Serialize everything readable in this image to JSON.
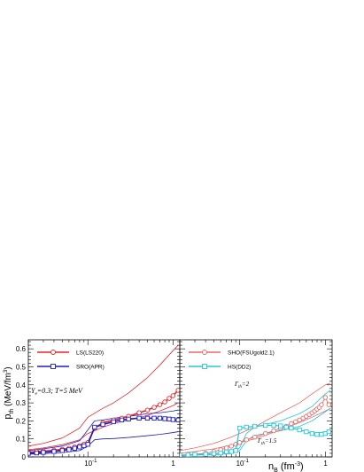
{
  "chart_data": [
    {
      "type": "line",
      "panel": "left",
      "xscale": "log",
      "xlim": [
        0.02,
        1.2
      ],
      "ylim": [
        0,
        0.65
      ],
      "x_ticks": [
        {
          "value": 0.1,
          "label": "10",
          "sup": "-1"
        },
        {
          "value": 1.0,
          "label": "1"
        }
      ],
      "y_ticks": [
        {
          "value": 0,
          "label": "0"
        },
        {
          "value": 0.1,
          "label": "0.1"
        },
        {
          "value": 0.2,
          "label": "0.2"
        },
        {
          "value": 0.3,
          "label": "0.3"
        },
        {
          "value": 0.4,
          "label": "0.4"
        },
        {
          "value": 0.5,
          "label": "0.5"
        },
        {
          "value": 0.6,
          "label": "0.6"
        }
      ],
      "ylabel": {
        "main": "p",
        "sub": "th",
        "unit": " (MeV/fm",
        "unit_sup": "3",
        "unit_end": ")"
      },
      "annotation": "Y_e=0.3; T=5 MeV",
      "legend": [
        {
          "label": "LS(LS220)",
          "color": "#e8272a",
          "marker": "circle"
        },
        {
          "label": "SRO(APR)",
          "color": "#1d1dbf",
          "marker": "square"
        }
      ],
      "series": [
        {
          "name": "LS(LS220)",
          "color": "#e8272a",
          "marker": "circle",
          "width": 1.6,
          "x": [
            0.02,
            0.025,
            0.03,
            0.04,
            0.05,
            0.06,
            0.07,
            0.08,
            0.09,
            0.1,
            0.12,
            0.15,
            0.2,
            0.25,
            0.3,
            0.4,
            0.5,
            0.6,
            0.7,
            0.8,
            0.9,
            1.0,
            1.15
          ],
          "y": [
            0.025,
            0.03,
            0.032,
            0.037,
            0.042,
            0.048,
            0.055,
            0.062,
            0.07,
            0.08,
            0.16,
            0.19,
            0.205,
            0.215,
            0.225,
            0.245,
            0.26,
            0.275,
            0.29,
            0.305,
            0.325,
            0.34,
            0.37
          ]
        },
        {
          "name": "SRO(APR)",
          "color": "#1d1dbf",
          "marker": "square",
          "width": 1.6,
          "x": [
            0.02,
            0.025,
            0.03,
            0.04,
            0.05,
            0.06,
            0.07,
            0.08,
            0.09,
            0.1,
            0.12,
            0.15,
            0.2,
            0.25,
            0.3,
            0.4,
            0.5,
            0.6,
            0.7,
            0.8,
            0.9,
            1.0,
            1.15
          ],
          "y": [
            0.02,
            0.022,
            0.025,
            0.03,
            0.035,
            0.04,
            0.048,
            0.055,
            0.062,
            0.07,
            0.165,
            0.18,
            0.195,
            0.205,
            0.21,
            0.215,
            0.215,
            0.215,
            0.215,
            0.212,
            0.21,
            0.207,
            0.205
          ]
        },
        {
          "name": "",
          "color": "#e8272a",
          "marker": "none",
          "width": 0.8,
          "x": [
            0.02,
            0.03,
            0.05,
            0.08,
            0.1,
            0.15,
            0.2,
            0.3,
            0.5,
            0.7,
            1.0,
            1.15
          ],
          "y": [
            0.06,
            0.075,
            0.105,
            0.16,
            0.22,
            0.27,
            0.3,
            0.355,
            0.44,
            0.51,
            0.59,
            0.62
          ]
        },
        {
          "name": "",
          "color": "#e8272a",
          "marker": "none",
          "width": 0.8,
          "x": [
            0.02,
            0.03,
            0.05,
            0.08,
            0.1,
            0.15,
            0.2,
            0.3,
            0.5,
            0.7,
            1.0,
            1.15
          ],
          "y": [
            0.04,
            0.05,
            0.068,
            0.095,
            0.13,
            0.165,
            0.185,
            0.205,
            0.23,
            0.255,
            0.285,
            0.3
          ]
        },
        {
          "name": "",
          "color": "#1d1dbf",
          "marker": "none",
          "width": 0.8,
          "x": [
            0.02,
            0.03,
            0.05,
            0.08,
            0.1,
            0.12,
            0.15,
            0.2,
            0.3,
            0.5,
            0.7,
            1.0,
            1.15
          ],
          "y": [
            0.035,
            0.045,
            0.06,
            0.09,
            0.15,
            0.2,
            0.205,
            0.215,
            0.225,
            0.24,
            0.245,
            0.255,
            0.26
          ]
        },
        {
          "name": "",
          "color": "#1d1dbf",
          "marker": "none",
          "width": 0.8,
          "x": [
            0.02,
            0.03,
            0.05,
            0.08,
            0.1,
            0.12,
            0.15,
            0.2,
            0.3,
            0.5,
            0.7,
            1.0,
            1.15
          ],
          "y": [
            0.015,
            0.018,
            0.024,
            0.035,
            0.06,
            0.095,
            0.1,
            0.102,
            0.108,
            0.118,
            0.125,
            0.135,
            0.14
          ]
        }
      ]
    },
    {
      "type": "line",
      "panel": "right",
      "xscale": "log",
      "xlim": [
        0.02,
        1.2
      ],
      "ylim": [
        0,
        0.65
      ],
      "x_ticks": [
        {
          "value": 0.1,
          "label": "10",
          "sup": "-1"
        },
        {
          "value": 1.0,
          "label": "1"
        }
      ],
      "xlabel": {
        "main": "n",
        "sub": "B",
        "unit": " (fm",
        "unit_sup": "-3",
        "unit_end": ")"
      },
      "annotations": [
        {
          "text": "Γ",
          "sub": "th",
          "rest": "=2"
        },
        {
          "text": "Γ",
          "sub": "th",
          "rest": "=1.5"
        }
      ],
      "legend": [
        {
          "label": "SHO(FSUgold2.1)",
          "color": "#e86a6a",
          "marker": "circle"
        },
        {
          "label": "HS(DD2)",
          "color": "#22c8dc",
          "marker": "square"
        }
      ],
      "series": [
        {
          "name": "SHO(FSUgold2.1)",
          "color": "#e86a6a",
          "marker": "circle",
          "width": 0.9,
          "x": [
            0.02,
            0.025,
            0.03,
            0.04,
            0.05,
            0.06,
            0.07,
            0.08,
            0.09,
            0.1,
            0.12,
            0.15,
            0.2,
            0.25,
            0.3,
            0.35,
            0.4,
            0.45,
            0.5,
            0.55,
            0.6,
            0.65,
            0.7,
            0.75,
            0.8,
            0.85,
            0.9,
            1.0,
            1.1
          ],
          "y": [
            0.005,
            0.01,
            0.015,
            0.02,
            0.03,
            0.04,
            0.05,
            0.06,
            0.07,
            0.08,
            0.095,
            0.11,
            0.13,
            0.145,
            0.16,
            0.17,
            0.185,
            0.195,
            0.205,
            0.215,
            0.225,
            0.235,
            0.245,
            0.255,
            0.265,
            0.275,
            0.29,
            0.33,
            0.29
          ]
        },
        {
          "name": "HS(DD2)",
          "color": "#22c8dc",
          "marker": "square",
          "width": 1.2,
          "x": [
            0.02,
            0.025,
            0.03,
            0.04,
            0.05,
            0.06,
            0.07,
            0.08,
            0.09,
            0.1,
            0.12,
            0.15,
            0.2,
            0.25,
            0.3,
            0.35,
            0.4,
            0.5,
            0.6,
            0.7,
            0.8,
            0.9,
            1.0,
            1.1
          ],
          "y": [
            0.01,
            0.012,
            0.014,
            0.015,
            0.018,
            0.022,
            0.028,
            0.03,
            0.035,
            0.16,
            0.165,
            0.17,
            0.175,
            0.175,
            0.172,
            0.165,
            0.16,
            0.15,
            0.14,
            0.13,
            0.125,
            0.125,
            0.13,
            0.14
          ]
        },
        {
          "name": "",
          "color": "#e86a6a",
          "marker": "none",
          "width": 0.8,
          "x": [
            0.02,
            0.03,
            0.05,
            0.08,
            0.1,
            0.15,
            0.2,
            0.3,
            0.5,
            0.7,
            1.0,
            1.15
          ],
          "y": [
            0.035,
            0.05,
            0.075,
            0.11,
            0.13,
            0.165,
            0.2,
            0.245,
            0.3,
            0.35,
            0.4,
            0.41
          ]
        },
        {
          "name": "",
          "color": "#e86a6a",
          "marker": "none",
          "width": 0.8,
          "x": [
            0.02,
            0.03,
            0.05,
            0.08,
            0.1,
            0.15,
            0.2,
            0.3,
            0.5,
            0.7,
            1.0,
            1.15
          ],
          "y": [
            0.02,
            0.03,
            0.045,
            0.065,
            0.08,
            0.1,
            0.12,
            0.15,
            0.19,
            0.22,
            0.255,
            0.27
          ]
        },
        {
          "name": "",
          "color": "#22c8dc",
          "marker": "none",
          "width": 0.8,
          "x": [
            0.02,
            0.03,
            0.05,
            0.08,
            0.1,
            0.12,
            0.15,
            0.2,
            0.3,
            0.5,
            0.7,
            1.0,
            1.15
          ],
          "y": [
            0.01,
            0.013,
            0.017,
            0.025,
            0.05,
            0.13,
            0.165,
            0.18,
            0.2,
            0.24,
            0.28,
            0.35,
            0.37
          ]
        },
        {
          "name": "",
          "color": "#22c8dc",
          "marker": "none",
          "width": 0.8,
          "x": [
            0.02,
            0.03,
            0.05,
            0.08,
            0.1,
            0.12,
            0.15,
            0.2,
            0.3,
            0.5,
            0.7,
            1.0,
            1.15
          ],
          "y": [
            0.008,
            0.01,
            0.012,
            0.018,
            0.035,
            0.09,
            0.12,
            0.13,
            0.145,
            0.17,
            0.2,
            0.25,
            0.27
          ]
        }
      ]
    }
  ]
}
